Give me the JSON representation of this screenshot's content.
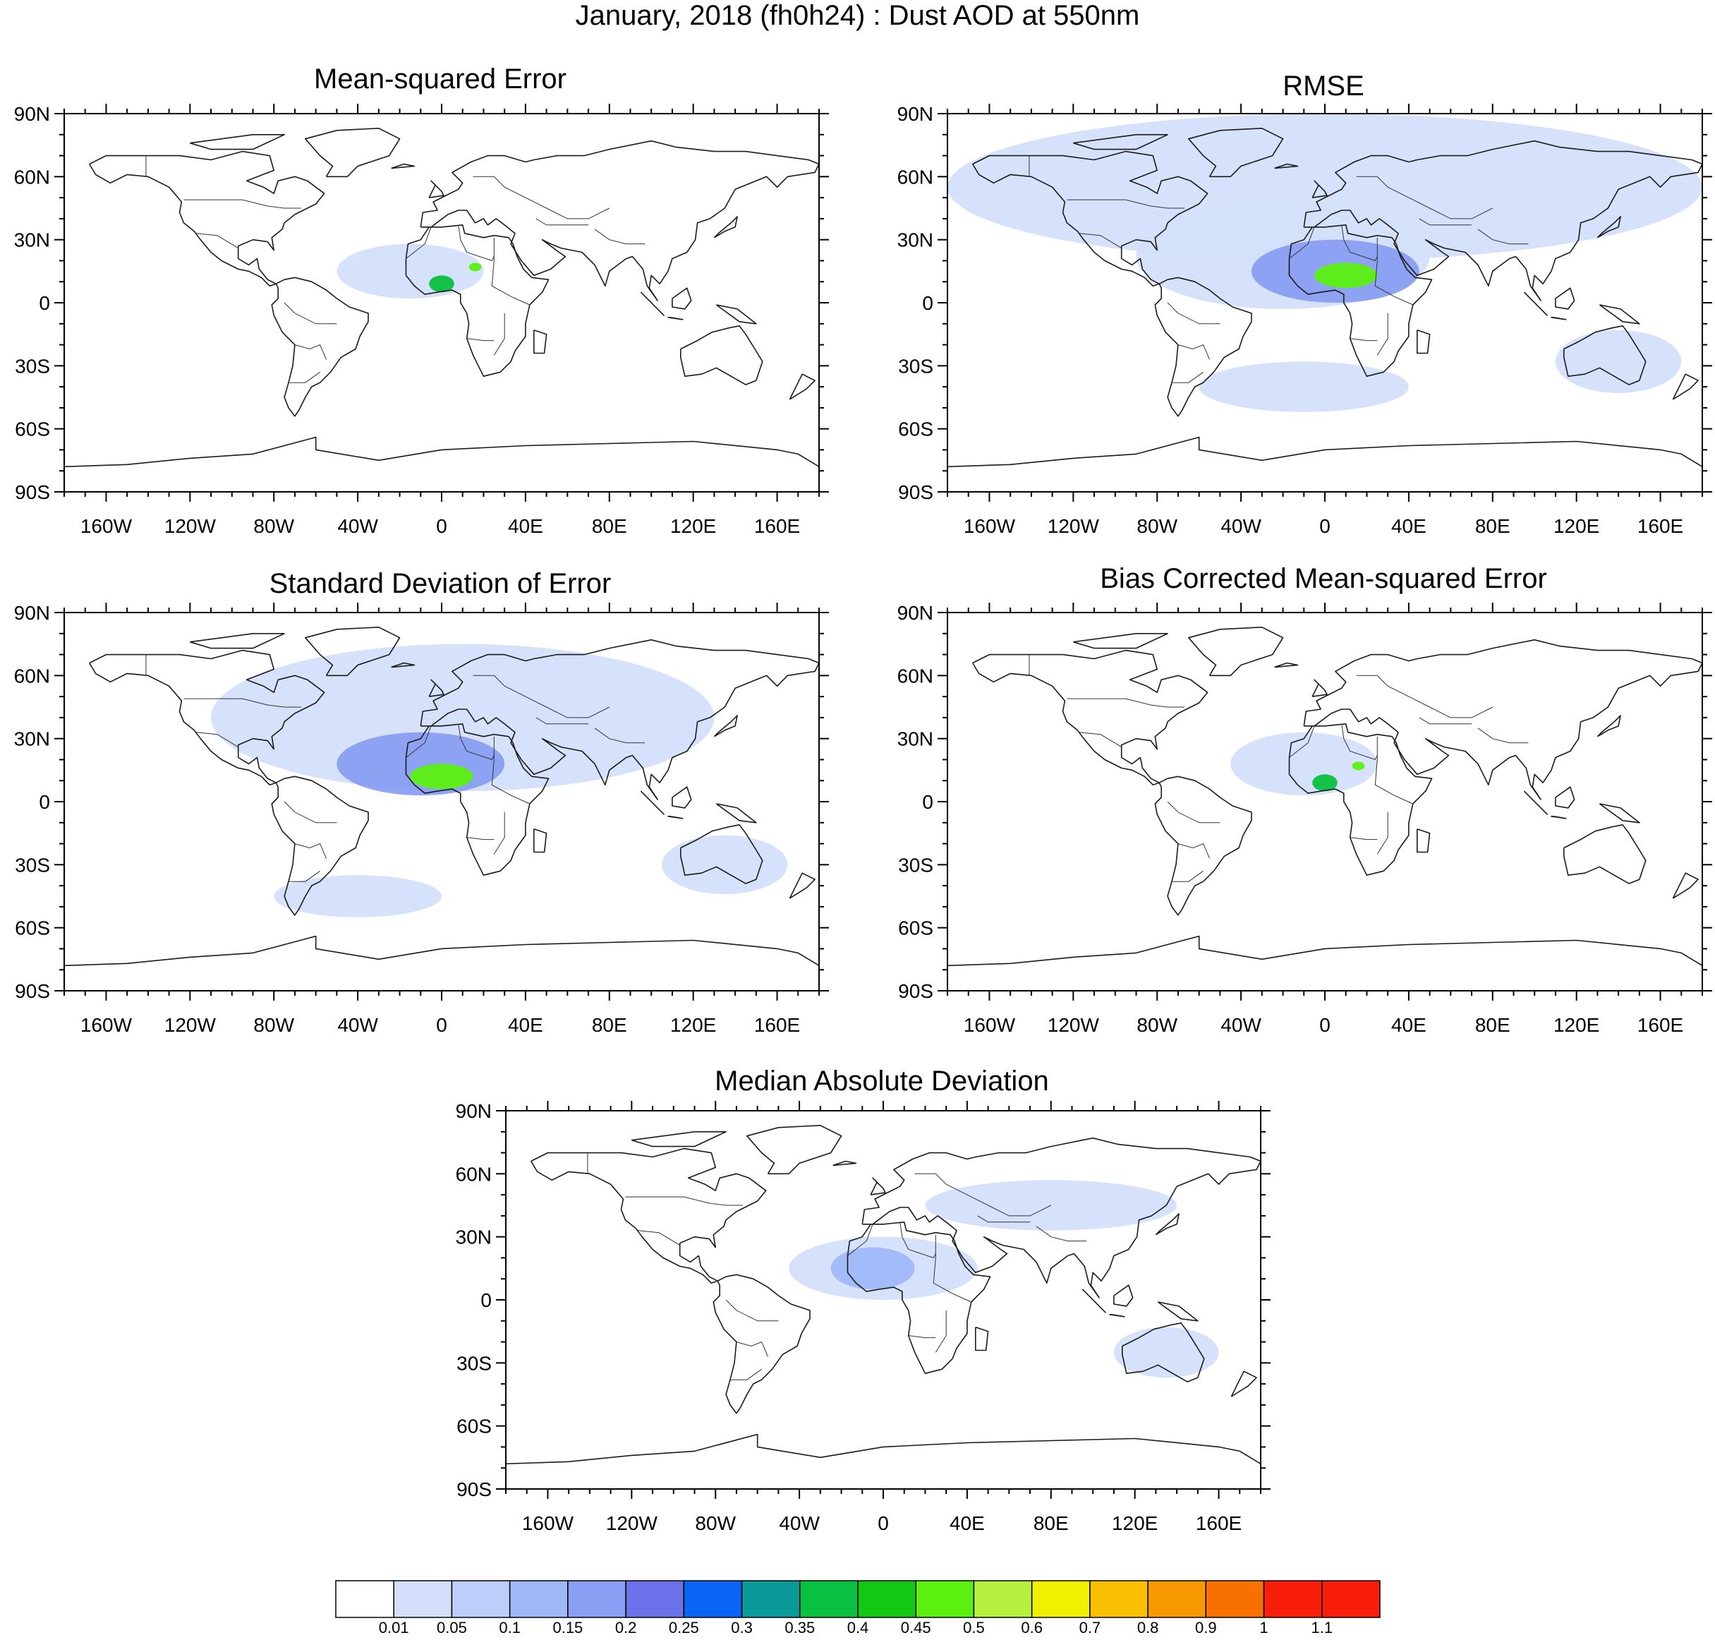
{
  "title": "January, 2018 (fh0h24) : Dust AOD at 550nm",
  "panels": [
    {
      "title": "Mean-squared Error"
    },
    {
      "title": "RMSE"
    },
    {
      "title": "Standard Deviation of Error"
    },
    {
      "title": "Bias Corrected Mean-squared Error"
    },
    {
      "title": "Median Absolute Deviation"
    }
  ],
  "axes": {
    "lat_labels": [
      "90N",
      "60N",
      "30N",
      "0",
      "30S",
      "60S",
      "90S"
    ],
    "lon_labels": [
      "160W",
      "120W",
      "80W",
      "40W",
      "0",
      "40E",
      "80E",
      "120E",
      "160E"
    ],
    "lat_range": [
      -90,
      90
    ],
    "lon_range": [
      -180,
      180
    ]
  },
  "colorbar": {
    "labels": [
      "0.01",
      "0.05",
      "0.1",
      "0.15",
      "0.2",
      "0.25",
      "0.3",
      "0.35",
      "0.4",
      "0.45",
      "0.5",
      "0.6",
      "0.7",
      "0.8",
      "0.9",
      "1",
      "1.1"
    ],
    "colors": [
      "#ffffff",
      "#d4e0fb",
      "#bccefa",
      "#a0b8f8",
      "#8a9ef3",
      "#6c72ea",
      "#0a64f5",
      "#0a9a9a",
      "#0ac040",
      "#12c812",
      "#5cf010",
      "#b8f040",
      "#f0f000",
      "#f8c000",
      "#f89800",
      "#f87000",
      "#f81e0a"
    ]
  },
  "chart_data": {
    "type": "map",
    "projection": "cylindrical equidistant, global",
    "variable": "Dust AOD at 550nm",
    "period": "January, 2018 (fh0h24)",
    "levels": [
      0.01,
      0.05,
      0.1,
      0.15,
      0.2,
      0.25,
      0.3,
      0.35,
      0.4,
      0.45,
      0.5,
      0.6,
      0.7,
      0.8,
      0.9,
      1,
      1.1
    ],
    "fields": [
      {
        "panel": "Mean-squared Error",
        "regions": [
          {
            "lon": -15,
            "lat": 15,
            "rx": 35,
            "ry": 13,
            "level": 1
          },
          {
            "lon": 0,
            "lat": 9,
            "rx": 6,
            "ry": 4,
            "level": 8
          },
          {
            "lon": 16,
            "lat": 17,
            "rx": 3,
            "ry": 2,
            "level": 10
          }
        ]
      },
      {
        "panel": "RMSE",
        "regions": [
          {
            "lon": 0,
            "lat": 55,
            "rx": 180,
            "ry": 35,
            "level": 1
          },
          {
            "lon": -20,
            "lat": 22,
            "rx": 70,
            "ry": 25,
            "level": 1
          },
          {
            "lon": 5,
            "lat": 15,
            "rx": 40,
            "ry": 15,
            "level": 4
          },
          {
            "lon": 10,
            "lat": 13,
            "rx": 15,
            "ry": 6,
            "level": 10
          },
          {
            "lon": 140,
            "lat": -28,
            "rx": 30,
            "ry": 15,
            "level": 1
          },
          {
            "lon": -10,
            "lat": -40,
            "rx": 50,
            "ry": 12,
            "level": 1
          }
        ]
      },
      {
        "panel": "Standard Deviation of Error",
        "regions": [
          {
            "lon": 10,
            "lat": 40,
            "rx": 120,
            "ry": 35,
            "level": 1
          },
          {
            "lon": -10,
            "lat": 18,
            "rx": 40,
            "ry": 15,
            "level": 4
          },
          {
            "lon": 0,
            "lat": 12,
            "rx": 15,
            "ry": 6,
            "level": 10
          },
          {
            "lon": 135,
            "lat": -30,
            "rx": 30,
            "ry": 14,
            "level": 1
          },
          {
            "lon": -40,
            "lat": -45,
            "rx": 40,
            "ry": 10,
            "level": 1
          }
        ]
      },
      {
        "panel": "Bias Corrected Mean-squared Error",
        "regions": [
          {
            "lon": -10,
            "lat": 18,
            "rx": 35,
            "ry": 15,
            "level": 1
          },
          {
            "lon": 0,
            "lat": 9,
            "rx": 6,
            "ry": 4,
            "level": 8
          },
          {
            "lon": 16,
            "lat": 17,
            "rx": 3,
            "ry": 2,
            "level": 10
          }
        ]
      },
      {
        "panel": "Median Absolute Deviation",
        "regions": [
          {
            "lon": 0,
            "lat": 15,
            "rx": 45,
            "ry": 15,
            "level": 1
          },
          {
            "lon": -5,
            "lat": 15,
            "rx": 20,
            "ry": 10,
            "level": 3
          },
          {
            "lon": 135,
            "lat": -25,
            "rx": 25,
            "ry": 12,
            "level": 1
          },
          {
            "lon": 80,
            "lat": 45,
            "rx": 60,
            "ry": 12,
            "level": 1
          }
        ]
      }
    ]
  }
}
